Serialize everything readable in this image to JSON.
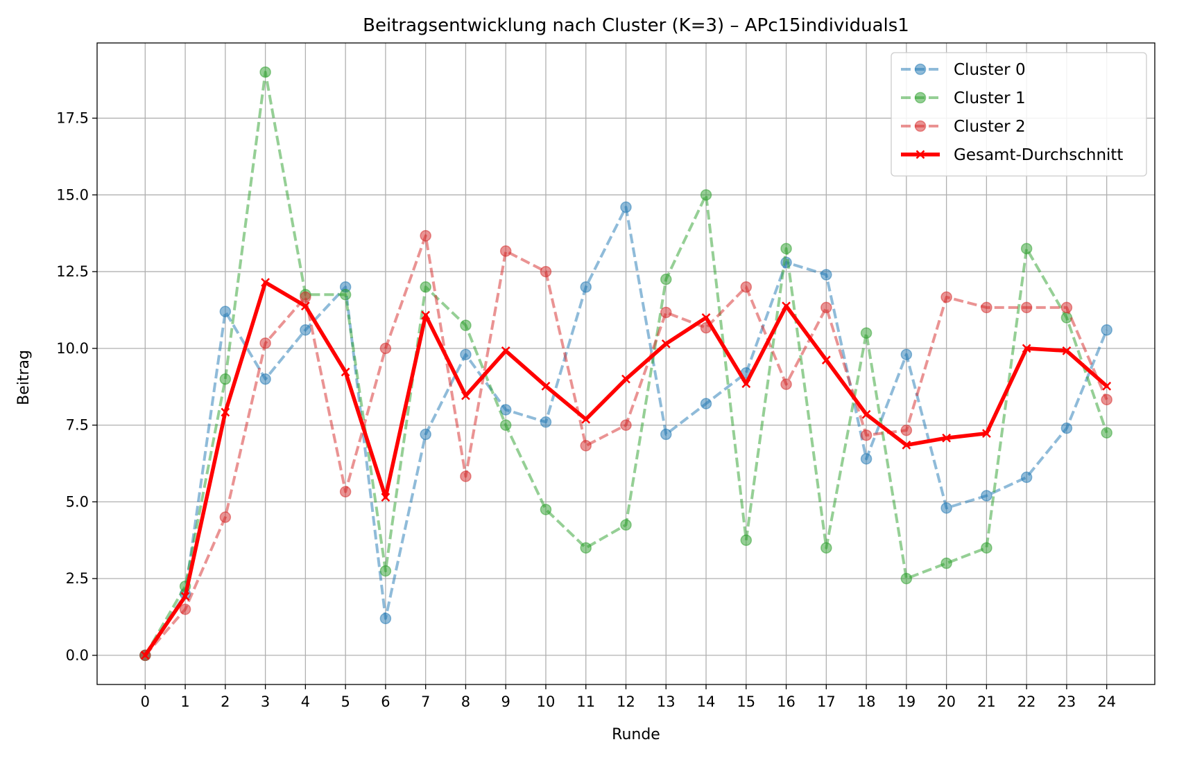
{
  "chart_data": {
    "type": "line",
    "title": "Beitragsentwicklung nach Cluster (K=3) – APc15individuals1",
    "xlabel": "Runde",
    "ylabel": "Beitrag",
    "x": [
      0,
      1,
      2,
      3,
      4,
      5,
      6,
      7,
      8,
      9,
      10,
      11,
      12,
      13,
      14,
      15,
      16,
      17,
      18,
      19,
      20,
      21,
      22,
      23,
      24
    ],
    "x_tick_labels": [
      "0",
      "1",
      "2",
      "3",
      "4",
      "5",
      "6",
      "7",
      "8",
      "9",
      "10",
      "11",
      "12",
      "13",
      "14",
      "15",
      "16",
      "17",
      "18",
      "19",
      "20",
      "21",
      "22",
      "23",
      "24"
    ],
    "xlim": [
      -1.2,
      25.2
    ],
    "ylim": [
      -0.95,
      19.95
    ],
    "y_ticks": [
      0,
      2.5,
      5,
      7.5,
      10,
      12.5,
      15,
      17.5
    ],
    "y_tick_labels": [
      "0.0",
      "2.5",
      "5.0",
      "7.5",
      "10.0",
      "12.5",
      "15.0",
      "17.5"
    ],
    "grid": true,
    "legend_position": "top-right",
    "series": [
      {
        "name": "Cluster 0",
        "color": "#1f77b4",
        "style": "dashed",
        "marker": "circle",
        "values": [
          0,
          2.0,
          11.2,
          9.0,
          10.6,
          12.0,
          1.2,
          7.2,
          9.8,
          8.0,
          7.6,
          12.0,
          14.6,
          7.2,
          8.2,
          9.2,
          12.8,
          12.4,
          6.4,
          9.8,
          4.8,
          5.2,
          5.8,
          7.4,
          10.6
        ]
      },
      {
        "name": "Cluster 1",
        "color": "#2ca02c",
        "style": "dashed",
        "marker": "circle",
        "values": [
          0,
          2.25,
          9.0,
          19.0,
          11.75,
          11.75,
          2.75,
          12.0,
          10.75,
          7.5,
          4.75,
          3.5,
          4.25,
          12.25,
          15.0,
          3.75,
          13.25,
          3.5,
          10.5,
          2.5,
          3.0,
          3.5,
          13.25,
          11.0,
          7.25
        ]
      },
      {
        "name": "Cluster 2",
        "color": "#d62728",
        "style": "dashed",
        "marker": "circle",
        "values": [
          0,
          1.5,
          4.5,
          10.17,
          11.67,
          5.33,
          10.0,
          13.67,
          5.83,
          13.17,
          12.5,
          6.83,
          7.5,
          11.17,
          10.67,
          12.0,
          8.83,
          11.33,
          7.17,
          7.33,
          11.67,
          11.33,
          11.33,
          11.33,
          8.33
        ]
      },
      {
        "name": "Gesamt-Durchschnitt",
        "color": "#ff0000",
        "style": "solid",
        "marker": "x",
        "values": [
          0,
          1.92,
          7.92,
          12.15,
          11.38,
          9.23,
          5.15,
          11.08,
          8.46,
          9.92,
          8.77,
          7.69,
          9.0,
          10.15,
          11.0,
          8.85,
          11.38,
          9.62,
          7.85,
          6.85,
          7.08,
          7.23,
          10.0,
          9.92,
          8.77
        ]
      }
    ]
  }
}
